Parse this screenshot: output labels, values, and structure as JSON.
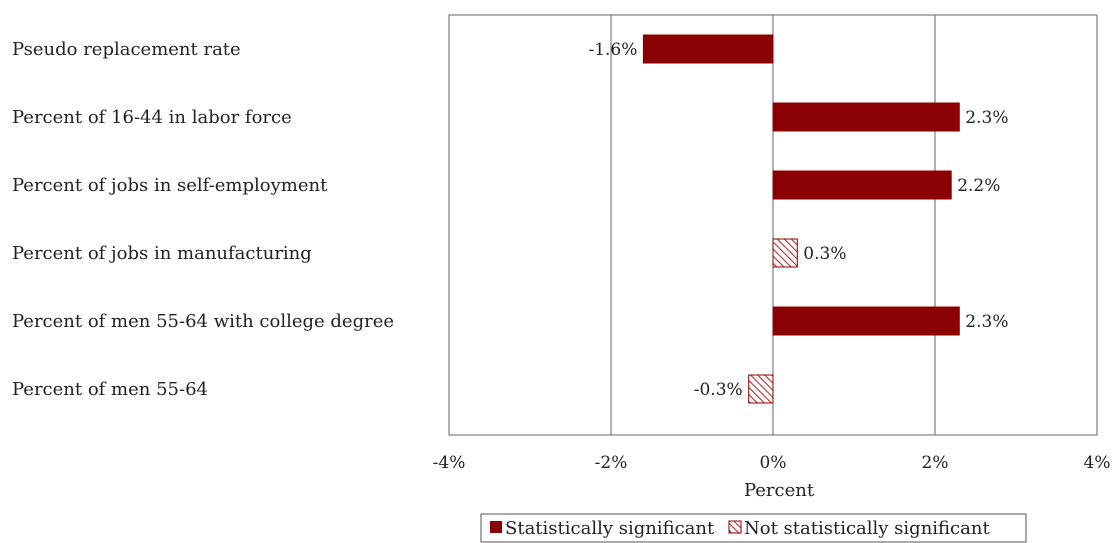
{
  "chart_data": {
    "type": "bar",
    "orientation": "horizontal",
    "title": "",
    "xlabel": "Percent",
    "ylabel": "",
    "xlim": [
      -4,
      4
    ],
    "xticks": [
      -4,
      -2,
      0,
      2,
      4
    ],
    "xtick_labels": [
      "-4%",
      "-2%",
      "0%",
      "2%",
      "4%"
    ],
    "grid": "vertical",
    "legend_position": "bottom",
    "categories": [
      "Pseudo replacement rate",
      "Percent of 16-44 in labor force",
      "Percent of jobs in self-employment",
      "Percent of jobs in manufacturing",
      "Percent of men 55-64 with college degree",
      "Percent of men 55-64"
    ],
    "values": [
      -1.6,
      2.3,
      2.2,
      0.3,
      2.3,
      -0.3
    ],
    "value_labels": [
      "-1.6%",
      "2.3%",
      "2.2%",
      "0.3%",
      "2.3%",
      "-0.3%"
    ],
    "significant": [
      true,
      true,
      true,
      false,
      true,
      false
    ],
    "legend": [
      {
        "name": "Statistically significant",
        "style": "solid"
      },
      {
        "name": "Not statistically significant",
        "style": "hatched"
      }
    ],
    "colors": {
      "significant": "#8b0000",
      "hatch": "#b03030"
    }
  }
}
